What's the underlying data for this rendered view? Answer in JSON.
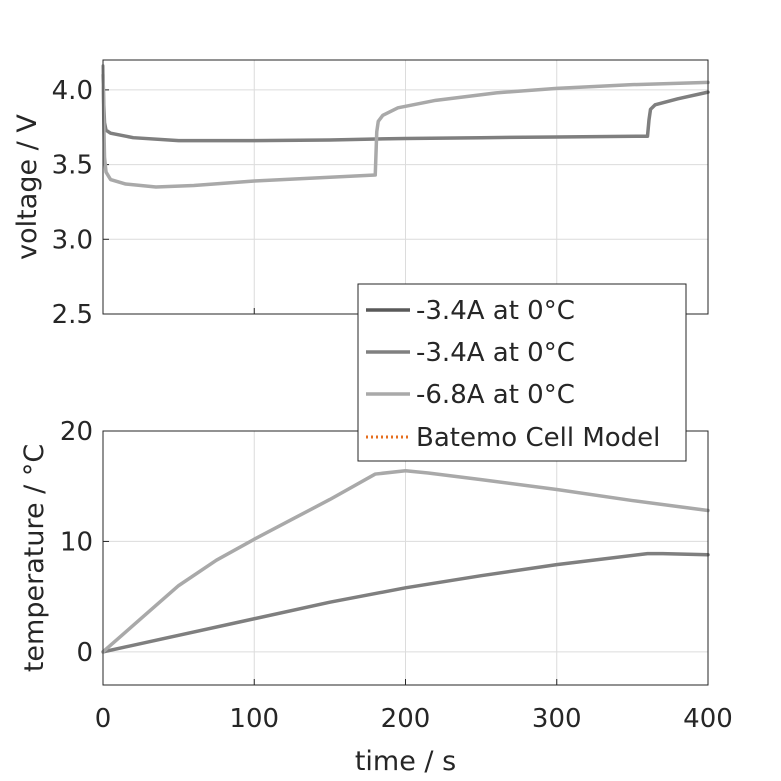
{
  "chart_data": [
    {
      "type": "line",
      "ylabel": "voltage / V",
      "xlim": [
        0,
        400
      ],
      "ylim": [
        2.5,
        4.2
      ],
      "xticks": [
        0,
        100,
        200,
        300,
        400
      ],
      "yticks": [
        "2.5",
        "3.0",
        "3.5",
        "4.0"
      ],
      "grid": true,
      "series": [
        {
          "color": "#7f7f7f",
          "points": [
            [
              0,
              4.1
            ],
            [
              0.5,
              3.9
            ],
            [
              1,
              3.78
            ],
            [
              2,
              3.73
            ],
            [
              5,
              3.71
            ],
            [
              20,
              3.68
            ],
            [
              50,
              3.66
            ],
            [
              100,
              3.66
            ],
            [
              150,
              3.665
            ],
            [
              200,
              3.675
            ],
            [
              250,
              3.68
            ],
            [
              300,
              3.685
            ],
            [
              358,
              3.69
            ],
            [
              360,
              3.69
            ],
            [
              361,
              3.8
            ],
            [
              362,
              3.87
            ],
            [
              365,
              3.9
            ],
            [
              380,
              3.94
            ],
            [
              400,
              3.985
            ]
          ]
        },
        {
          "color": "#a9a9a9",
          "points": [
            [
              0,
              4.16
            ],
            [
              0.5,
              3.8
            ],
            [
              1,
              3.55
            ],
            [
              2,
              3.45
            ],
            [
              5,
              3.4
            ],
            [
              15,
              3.37
            ],
            [
              35,
              3.35
            ],
            [
              60,
              3.36
            ],
            [
              100,
              3.39
            ],
            [
              140,
              3.41
            ],
            [
              170,
              3.425
            ],
            [
              180,
              3.43
            ],
            [
              181,
              3.72
            ],
            [
              182,
              3.79
            ],
            [
              185,
              3.83
            ],
            [
              195,
              3.88
            ],
            [
              220,
              3.93
            ],
            [
              260,
              3.98
            ],
            [
              300,
              4.01
            ],
            [
              350,
              4.035
            ],
            [
              400,
              4.05
            ]
          ]
        }
      ]
    },
    {
      "type": "line",
      "xlabel": "time / s",
      "ylabel": "temperature / °C",
      "xlim": [
        0,
        400
      ],
      "ylim": [
        -3,
        20
      ],
      "xticks": [
        "0",
        "100",
        "200",
        "300",
        "400"
      ],
      "yticks": [
        "0",
        "10",
        "20"
      ],
      "grid": true,
      "series": [
        {
          "color": "#7f7f7f",
          "points": [
            [
              0,
              0
            ],
            [
              50,
              1.5
            ],
            [
              100,
              3
            ],
            [
              150,
              4.5
            ],
            [
              200,
              5.8
            ],
            [
              250,
              6.9
            ],
            [
              300,
              7.9
            ],
            [
              360,
              8.9
            ],
            [
              370,
              8.9
            ],
            [
              400,
              8.8
            ]
          ]
        },
        {
          "color": "#a9a9a9",
          "points": [
            [
              0,
              0
            ],
            [
              25,
              3
            ],
            [
              50,
              6
            ],
            [
              75,
              8.3
            ],
            [
              100,
              10.2
            ],
            [
              125,
              12
            ],
            [
              150,
              13.8
            ],
            [
              180,
              16.1
            ],
            [
              200,
              16.4
            ],
            [
              215,
              16.2
            ],
            [
              250,
              15.6
            ],
            [
              300,
              14.7
            ],
            [
              350,
              13.7
            ],
            [
              400,
              12.8
            ]
          ]
        }
      ]
    }
  ],
  "legend": {
    "placement": "center-right",
    "entries": [
      {
        "label": "-3.4A at 0°C",
        "color": "#595959",
        "style": "solid"
      },
      {
        "label": "-3.4A at 0°C",
        "color": "#808080",
        "style": "solid"
      },
      {
        "label": "-6.8A at 0°C",
        "color": "#a9a9a9",
        "style": "solid"
      },
      {
        "label": "Batemo Cell Model",
        "color": "#e66e1e",
        "style": "dotted"
      }
    ]
  }
}
